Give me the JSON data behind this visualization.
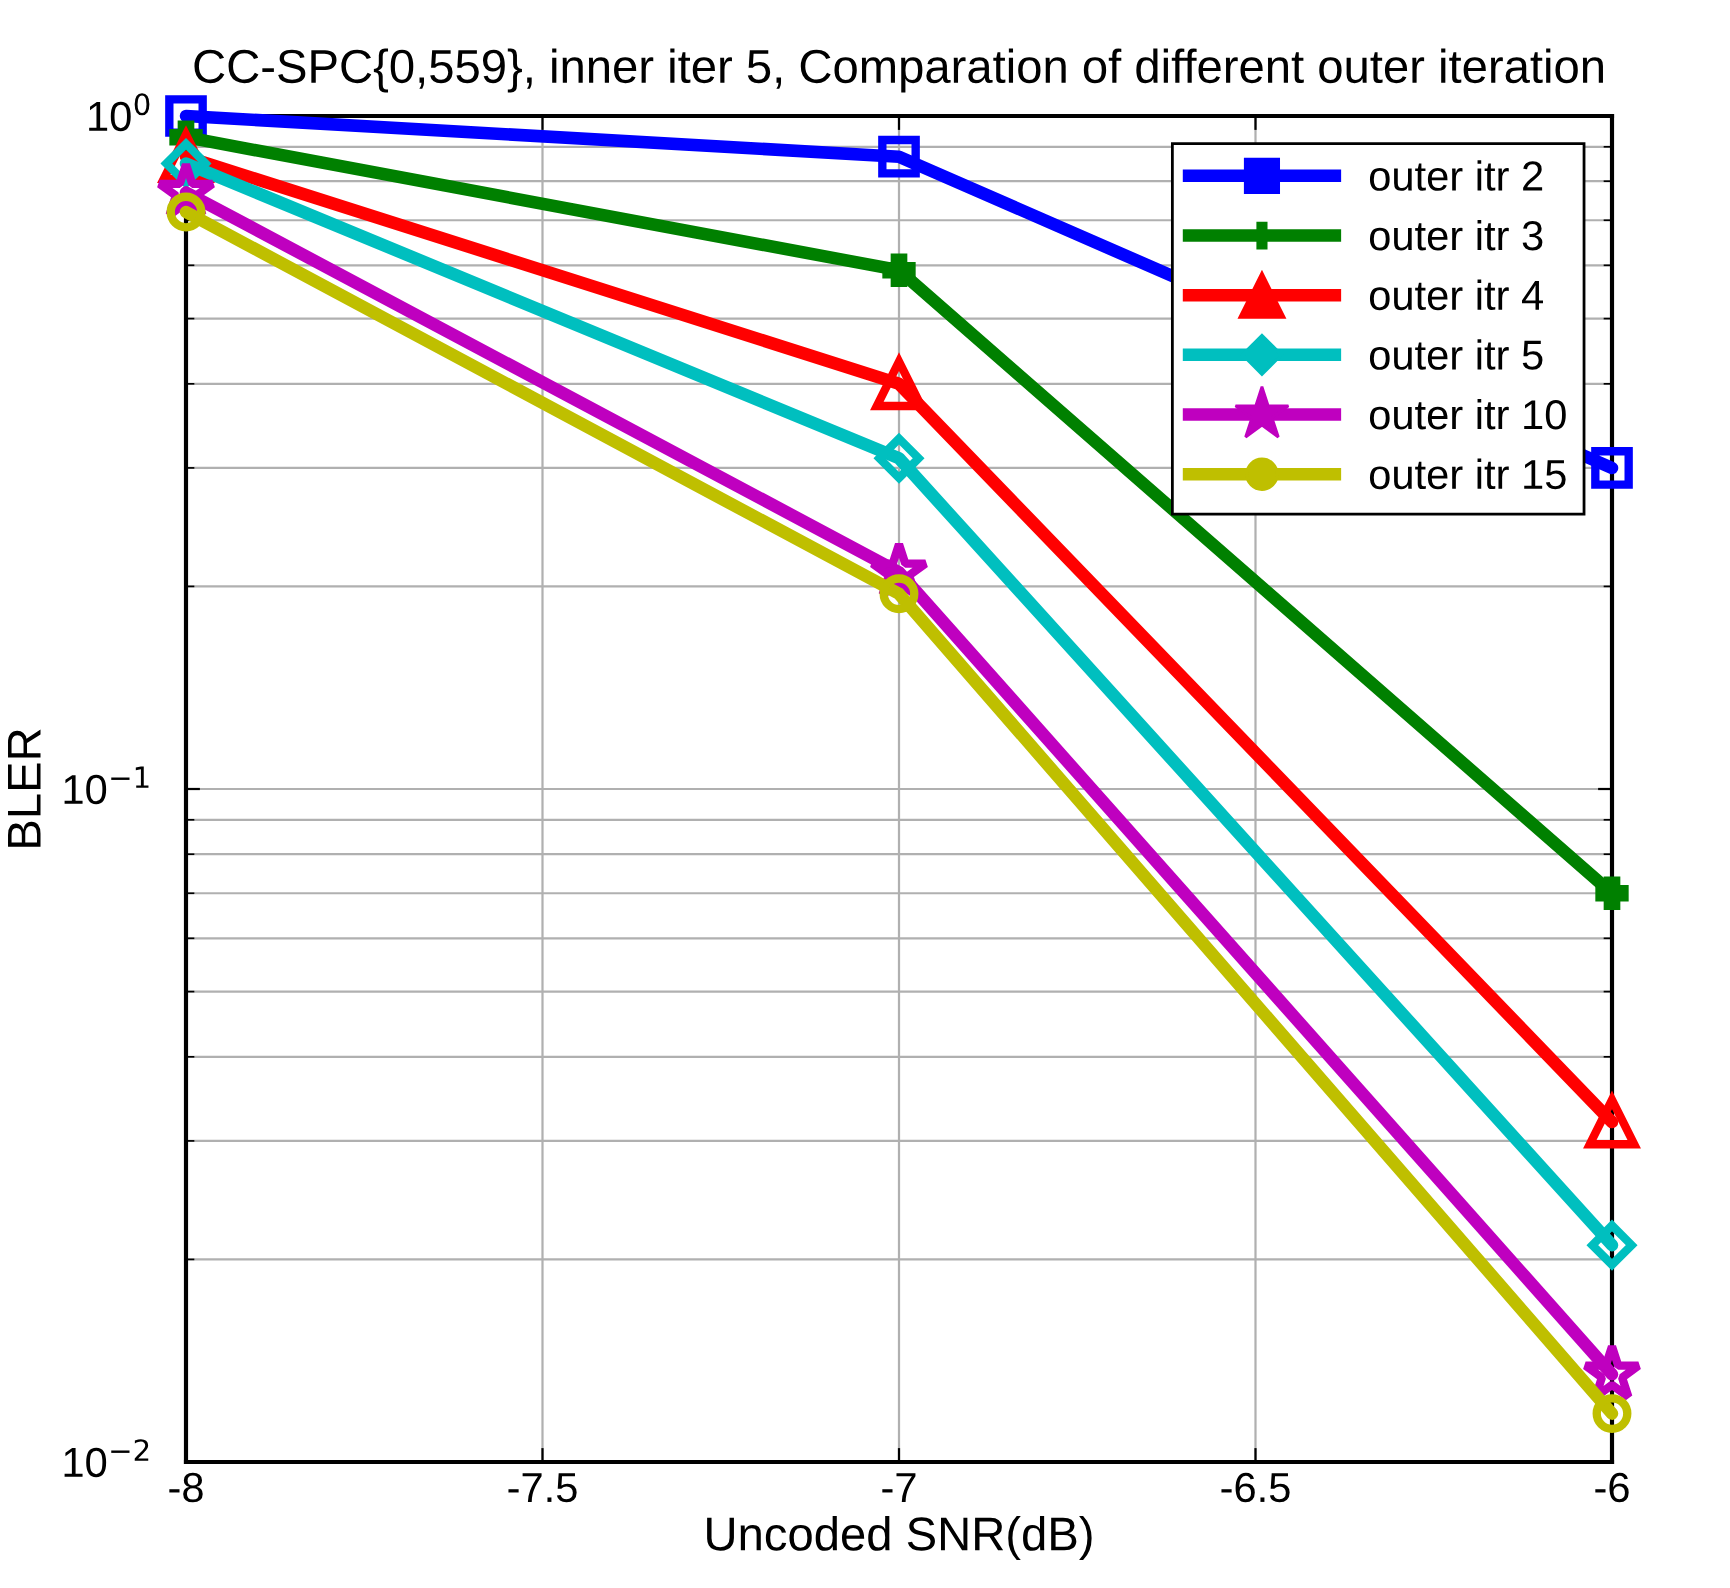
{
  "chart_data": {
    "type": "line",
    "title": "CC-SPC{0,559}, inner iter 5, Comparation of different outer iteration",
    "xlabel": "Uncoded SNR(dB)",
    "ylabel": "BLER",
    "x": [
      -8,
      -7,
      -6
    ],
    "series": [
      {
        "name": "outer itr 2",
        "color": "#0000ff",
        "marker": "square",
        "values": [
          1.0,
          0.87,
          0.3
        ]
      },
      {
        "name": "outer itr 3",
        "color": "#008000",
        "marker": "cross",
        "values": [
          0.93,
          0.59,
          0.07
        ]
      },
      {
        "name": "outer itr 4",
        "color": "#ff0000",
        "marker": "triangle",
        "values": [
          0.87,
          0.4,
          0.032
        ]
      },
      {
        "name": "outer itr 5",
        "color": "#00bfbf",
        "marker": "diamond",
        "values": [
          0.85,
          0.31,
          0.021
        ]
      },
      {
        "name": "outer itr 10",
        "color": "#bf00bf",
        "marker": "star",
        "values": [
          0.77,
          0.21,
          0.0135
        ]
      },
      {
        "name": "outer itr 15",
        "color": "#bfbf00",
        "marker": "circle",
        "values": [
          0.72,
          0.195,
          0.0118
        ]
      }
    ],
    "log": "y",
    "xlim": [
      -8,
      -6
    ],
    "ylim": [
      0.01,
      1
    ],
    "xticks": [
      -8,
      -7.5,
      -7,
      -6.5,
      -6
    ],
    "yticks": [
      {
        "value": 0.01,
        "label": "10$^{−2}$"
      },
      {
        "value": 0.1,
        "label": "10$^{−1}$"
      },
      {
        "value": 1,
        "label": "10$^{0}$"
      }
    ],
    "grid": true,
    "legend": "top right",
    "line_style": "solid"
  }
}
